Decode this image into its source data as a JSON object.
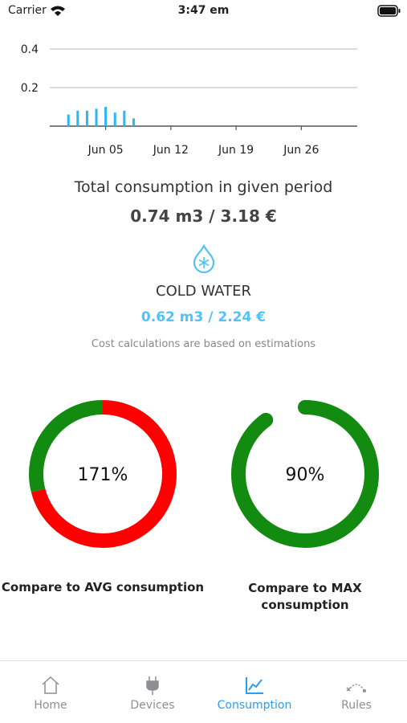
{
  "status_bar": {
    "carrier": "Carrier",
    "time": "3:47 em"
  },
  "chart_data": {
    "type": "bar",
    "x": [
      "Jun 01",
      "Jun 02",
      "Jun 03",
      "Jun 04",
      "Jun 05",
      "Jun 06",
      "Jun 07",
      "Jun 08"
    ],
    "values": [
      0.06,
      0.08,
      0.08,
      0.09,
      0.1,
      0.07,
      0.08,
      0.04
    ],
    "color": "#29b6f6",
    "xlim": [
      "May 30",
      "Jul 02"
    ],
    "xticks": [
      "Jun 05",
      "Jun 12",
      "Jun 19",
      "Jun 26"
    ],
    "ylim": [
      0,
      0.4
    ],
    "yticks": [
      0.2,
      0.4
    ],
    "grid": true
  },
  "summary": {
    "title": "Total consumption in given period",
    "total": "0.74 m3 / 3.18 €",
    "utility": "COLD WATER",
    "utility_total": "0.62 m3 / 2.24 €",
    "note": "Cost calculations are based on estimations"
  },
  "gauges": [
    {
      "value": 171,
      "value_label": "171%",
      "caption": "Compare to AVG consumption",
      "color": "#138a10",
      "over_color": "#ff0000"
    },
    {
      "value": 90,
      "value_label": "90%",
      "caption": "Compare to MAX consumption",
      "color": "#138a10",
      "over_color": "#ff0000"
    }
  ],
  "tabs": [
    "Home",
    "Devices",
    "Consumption",
    "Rules"
  ]
}
